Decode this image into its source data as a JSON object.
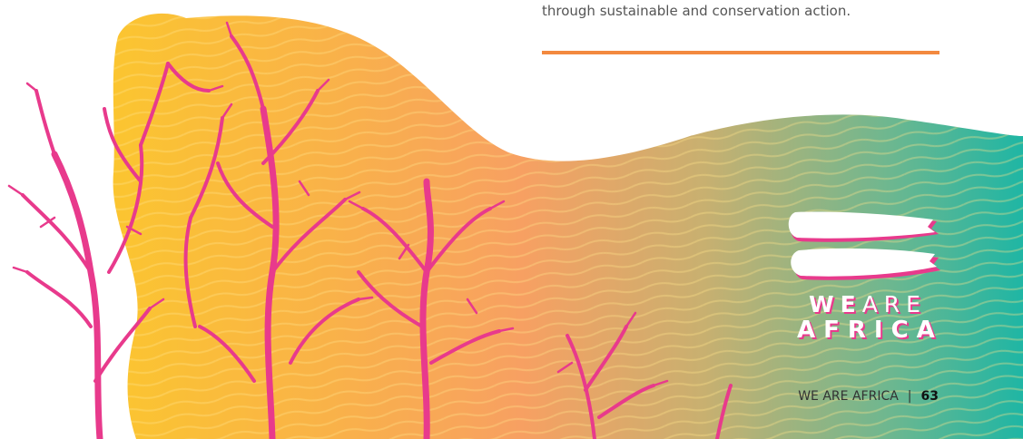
{
  "text": {
    "body_line": "through sustainable and conservation action."
  },
  "logo": {
    "word_we": "WE",
    "word_are": "ARE",
    "word_africa": "AFRICA"
  },
  "footer": {
    "publication": "WE ARE AFRICA",
    "separator": "|",
    "page_number": "63"
  },
  "colors": {
    "accent_rule": "#f3893f",
    "branch_pink": "#e83a8c",
    "gradient_yellow": "#fbc530",
    "gradient_orange": "#f7a062",
    "gradient_green": "#a4bd80",
    "gradient_teal": "#1fb6a4"
  }
}
